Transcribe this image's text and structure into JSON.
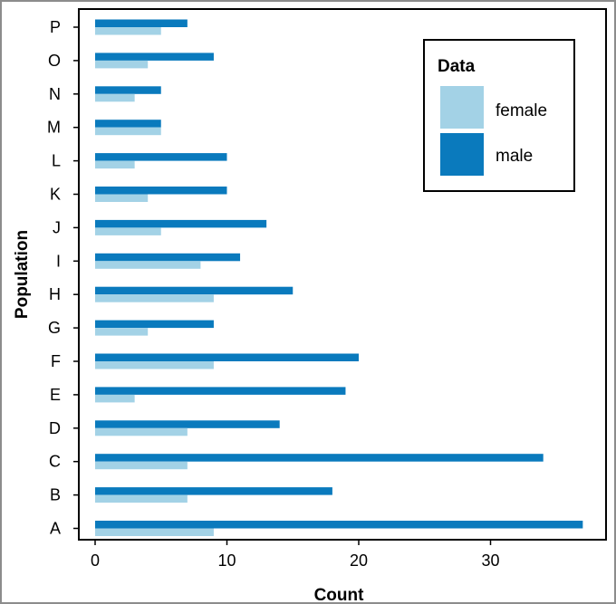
{
  "chart_data": {
    "type": "bar",
    "orientation": "horizontal",
    "xlabel": "Count",
    "ylabel": "Population",
    "xlim": [
      0,
      37
    ],
    "xticks": [
      0,
      10,
      20,
      30
    ],
    "grid": false,
    "legend": {
      "title": "Data",
      "position": "top-right"
    },
    "categories": [
      "A",
      "B",
      "C",
      "D",
      "E",
      "F",
      "G",
      "H",
      "I",
      "J",
      "K",
      "L",
      "M",
      "N",
      "O",
      "P"
    ],
    "series": [
      {
        "name": "female",
        "color": "#a3d2e6",
        "values": [
          9,
          7,
          7,
          7,
          3,
          9,
          4,
          9,
          8,
          5,
          4,
          3,
          5,
          3,
          4,
          5
        ]
      },
      {
        "name": "male",
        "color": "#0a7abd",
        "values": [
          37,
          18,
          34,
          14,
          19,
          20,
          9,
          15,
          11,
          13,
          10,
          10,
          5,
          5,
          9,
          7
        ]
      }
    ]
  }
}
